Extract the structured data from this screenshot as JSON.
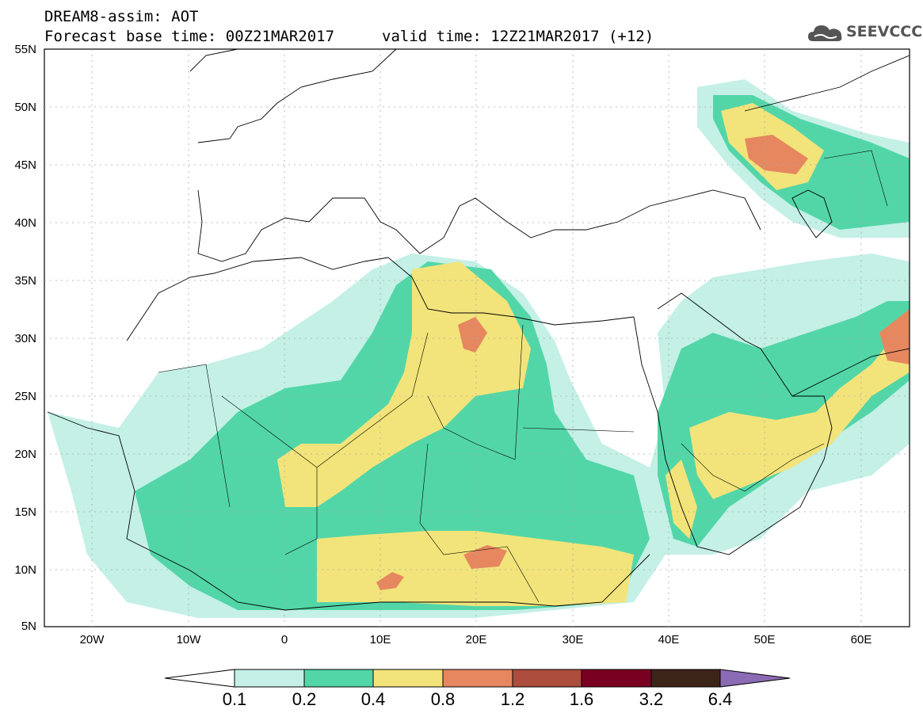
{
  "header": {
    "title_line1": "DREAM8-assim: AOT",
    "title_line2": "Forecast base time: 00Z21MAR2017",
    "valid_time": "valid time: 12Z21MAR2017 (+12)",
    "logo_text": "SEEVCCC"
  },
  "map": {
    "lat_labels": [
      "55N",
      "50N",
      "45N",
      "40N",
      "35N",
      "30N",
      "25N",
      "20N",
      "15N",
      "10N",
      "5N"
    ],
    "lon_labels": [
      "20W",
      "10W",
      "0",
      "10E",
      "20E",
      "30E",
      "40E",
      "50E",
      "60E"
    ],
    "lat_range": [
      5,
      55
    ],
    "lon_range": [
      -25,
      65
    ]
  },
  "colorbar": {
    "ticks": [
      "0.1",
      "0.2",
      "0.4",
      "0.8",
      "1.2",
      "1.6",
      "3.2",
      "6.4"
    ],
    "colors": [
      "#ffffff",
      "#c4f0e6",
      "#52d6a8",
      "#f2e47a",
      "#e6875f",
      "#ad4d3d",
      "#7a0022",
      "#3d2419",
      "#8c6bb5"
    ]
  }
}
